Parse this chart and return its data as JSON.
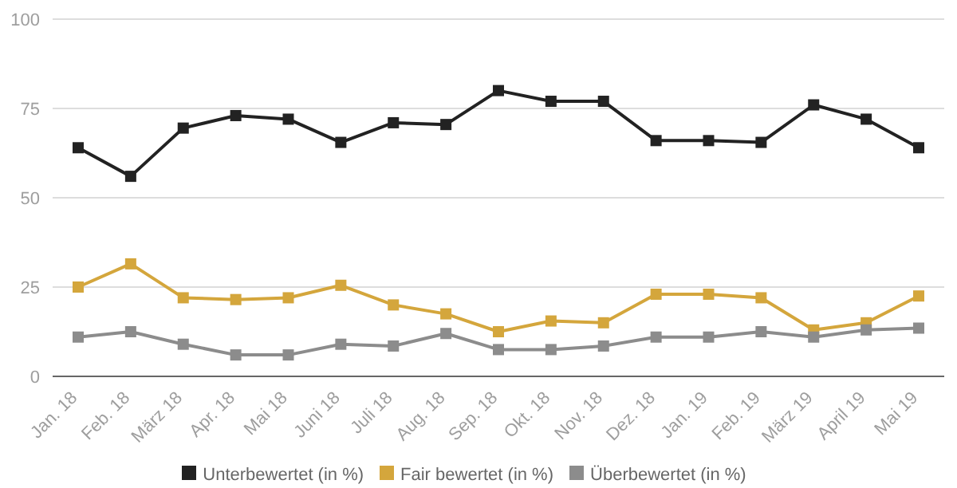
{
  "chart_data": {
    "type": "line",
    "categories": [
      "Jan. 18",
      "Feb. 18",
      "März 18",
      "Apr. 18",
      "Mai 18",
      "Juni 18",
      "Juli 18",
      "Aug. 18",
      "Sep. 18",
      "Okt. 18",
      "Nov. 18",
      "Dez. 18",
      "Jan. 19",
      "Feb. 19",
      "März 19",
      "April 19",
      "Mai 19"
    ],
    "series": [
      {
        "name": "Unterbewertet (in %)",
        "color": "#222222",
        "values": [
          64,
          56,
          69.5,
          73,
          72,
          65.5,
          71,
          70.5,
          80,
          77,
          77,
          66,
          66,
          65.5,
          76,
          72,
          64
        ]
      },
      {
        "name": "Fair bewertet (in %)",
        "color": "#d4a63c",
        "values": [
          25,
          31.5,
          22,
          21.5,
          22,
          25.5,
          20,
          17.5,
          12.5,
          15.5,
          15,
          23,
          23,
          22,
          13,
          15,
          22.5
        ]
      },
      {
        "name": "Überbewertet (in %)",
        "color": "#8c8c8c",
        "values": [
          11,
          12.5,
          9,
          6,
          6,
          9,
          8.5,
          12,
          7.5,
          7.5,
          8.5,
          11,
          11,
          12.5,
          11,
          13,
          13.5
        ]
      }
    ],
    "ylim": [
      0,
      100
    ],
    "yticks": [
      0,
      25,
      50,
      75,
      100
    ],
    "grid": "y",
    "legend": "bottom",
    "marker": "square",
    "line_style": "solid"
  }
}
